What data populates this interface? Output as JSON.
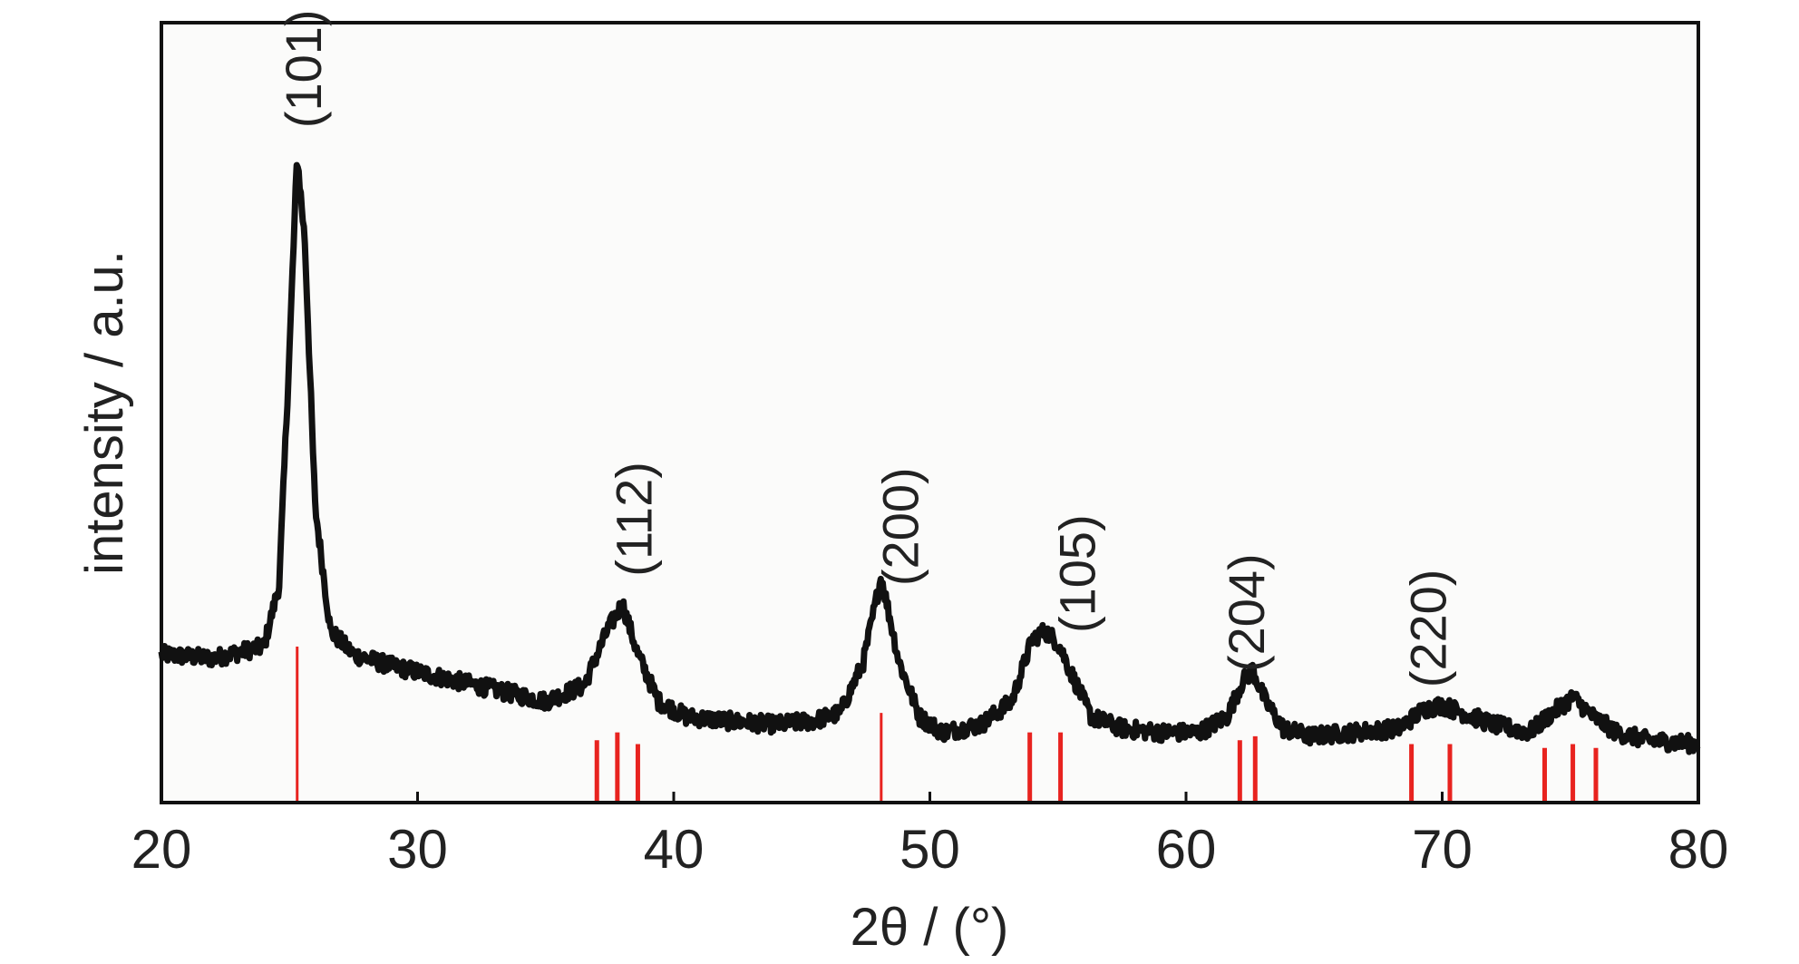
{
  "chart_data": {
    "type": "line",
    "xlabel": "2θ / (°)",
    "ylabel": "intensity / a.u.",
    "xlim": [
      20,
      80
    ],
    "ylim": [
      0,
      100
    ],
    "x_ticks": [
      "20",
      "30",
      "40",
      "50",
      "60",
      "70",
      "80"
    ],
    "y_ticks_shown": false,
    "grid": false,
    "legend": "none",
    "colors": {
      "pattern": "#111111",
      "reference": "#e8231f",
      "frame": "#111111"
    },
    "series": [
      {
        "kind": "measured-pattern",
        "x": [
          20,
          22,
          24,
          24.6,
          25.0,
          25.3,
          25.6,
          26.0,
          26.6,
          27.5,
          29,
          31,
          33,
          35,
          36.5,
          37.4,
          38.0,
          38.6,
          39.4,
          40.5,
          42,
          44,
          45.5,
          46.5,
          47.4,
          48.1,
          48.8,
          49.6,
          50.5,
          52,
          53.2,
          54.0,
          54.5,
          55.0,
          55.6,
          56.3,
          57.5,
          59,
          60.5,
          61.6,
          62.2,
          62.6,
          63.1,
          63.8,
          64.8,
          66.5,
          68.3,
          69.3,
          70.0,
          70.8,
          72,
          73.4,
          74.3,
          75.1,
          75.9,
          76.8,
          78,
          80
        ],
        "y": [
          19,
          18.5,
          20,
          28,
          58,
          83,
          72,
          38,
          22,
          19,
          17.5,
          16,
          14.5,
          13,
          15,
          22,
          25.5,
          19,
          13,
          11,
          10.5,
          10,
          10.5,
          11.5,
          18,
          29,
          18,
          11,
          9,
          10,
          13,
          21,
          22,
          20.5,
          16,
          11,
          9.5,
          9,
          9,
          11,
          15.5,
          17,
          13,
          9.5,
          8.5,
          9,
          9.5,
          12,
          12.5,
          11.5,
          10,
          9,
          11.5,
          13.5,
          11,
          9,
          8,
          7.5
        ]
      },
      {
        "kind": "reference-lines",
        "x": [
          25.3,
          37.0,
          37.8,
          38.6,
          48.1,
          53.9,
          55.1,
          62.1,
          62.7,
          68.8,
          70.3,
          74.0,
          75.1,
          76.0
        ],
        "y": [
          20,
          8,
          9,
          7.5,
          11.5,
          9,
          9,
          8,
          8.5,
          7.5,
          7.5,
          7,
          7.5,
          7
        ]
      }
    ],
    "annotations": [
      {
        "text": "(101)",
        "x": 25.6
      },
      {
        "text": "(112)",
        "x": 38.5
      },
      {
        "text": "(200)",
        "x": 48.9
      },
      {
        "text": "(105)",
        "x": 55.8
      },
      {
        "text": "(204)",
        "x": 62.4
      },
      {
        "text": "(220)",
        "x": 69.5
      }
    ]
  }
}
